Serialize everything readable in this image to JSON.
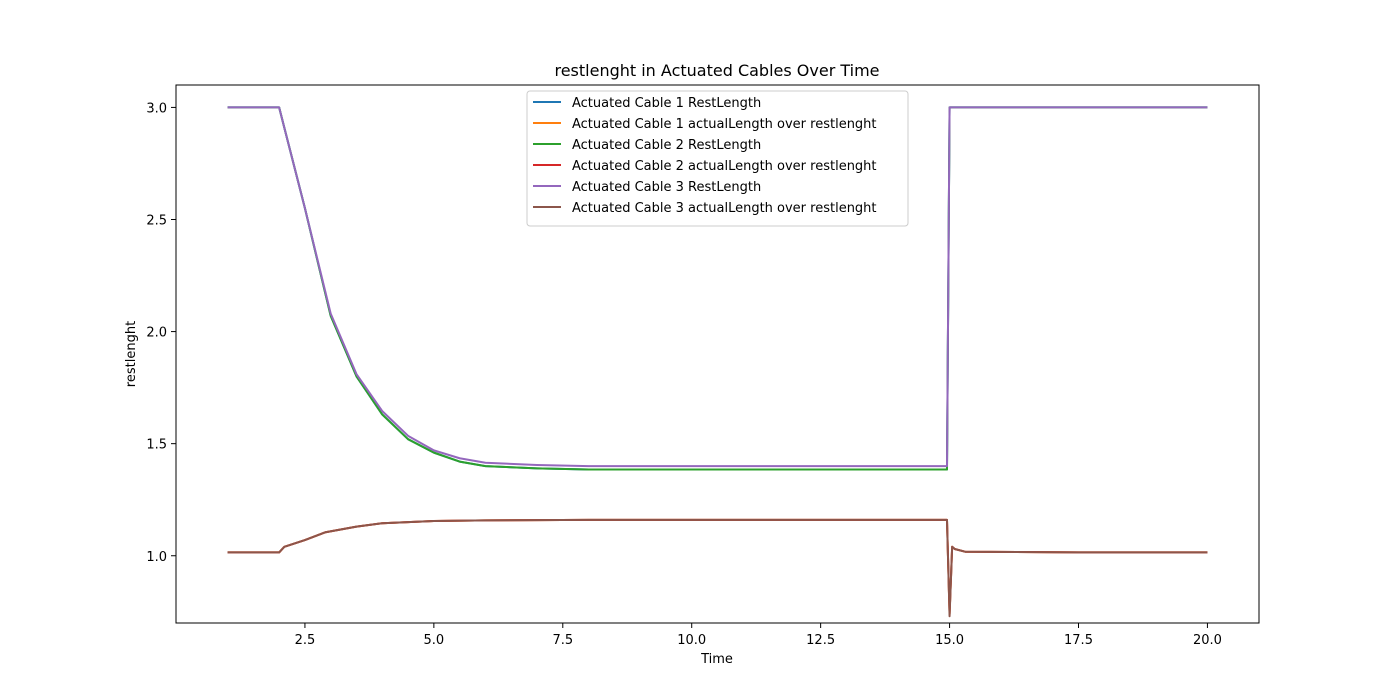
{
  "chart_data": {
    "type": "line",
    "title": "restlenght in Actuated Cables Over Time",
    "xlabel": "Time",
    "ylabel": "restlenght",
    "xlim": [
      0.0,
      21.0
    ],
    "ylim": [
      0.7,
      3.1
    ],
    "xticks": [
      2.5,
      5.0,
      7.5,
      10.0,
      12.5,
      15.0,
      17.5,
      20.0
    ],
    "xtick_labels": [
      "2.5",
      "5.0",
      "7.5",
      "10.0",
      "12.5",
      "15.0",
      "17.5",
      "20.0"
    ],
    "yticks": [
      1.0,
      1.5,
      2.0,
      2.5,
      3.0
    ],
    "ytick_labels": [
      "1.0",
      "1.5",
      "2.0",
      "2.5",
      "3.0"
    ],
    "grid": false,
    "legend_position": "upper-center",
    "series": [
      {
        "name": "Actuated Cable 1 RestLength",
        "color": "#1f77b4",
        "x": [
          1.0,
          2.0,
          2.5,
          3.0,
          3.5,
          4.0,
          4.5,
          5.0,
          5.5,
          6.0,
          7.0,
          8.0,
          10.0,
          12.5,
          14.95,
          15.0,
          15.05,
          17.5,
          20.0
        ],
        "y": [
          3.0,
          3.0,
          2.55,
          2.07,
          1.8,
          1.63,
          1.52,
          1.46,
          1.42,
          1.4,
          1.39,
          1.385,
          1.385,
          1.385,
          1.385,
          3.0,
          3.0,
          3.0,
          3.0
        ]
      },
      {
        "name": "Actuated Cable 1 actualLength over restlenght",
        "color": "#ff7f0e",
        "x": [
          1.0,
          2.0,
          2.1,
          2.5,
          2.9,
          3.5,
          4.0,
          5.0,
          6.0,
          8.0,
          10.0,
          12.5,
          14.95,
          15.0,
          15.05,
          15.1,
          15.3,
          17.5,
          20.0
        ],
        "y": [
          1.015,
          1.015,
          1.04,
          1.07,
          1.105,
          1.13,
          1.145,
          1.155,
          1.158,
          1.16,
          1.16,
          1.16,
          1.16,
          0.74,
          1.04,
          1.03,
          1.018,
          1.015,
          1.015
        ]
      },
      {
        "name": "Actuated Cable 2 RestLength",
        "color": "#2ca02c",
        "x": [
          1.0,
          2.0,
          2.5,
          3.0,
          3.5,
          4.0,
          4.5,
          5.0,
          5.5,
          6.0,
          7.0,
          8.0,
          10.0,
          12.5,
          14.95,
          15.0,
          15.05,
          17.5,
          20.0
        ],
        "y": [
          3.0,
          3.0,
          2.55,
          2.07,
          1.8,
          1.63,
          1.52,
          1.46,
          1.42,
          1.4,
          1.39,
          1.385,
          1.385,
          1.385,
          1.385,
          3.0,
          3.0,
          3.0,
          3.0
        ]
      },
      {
        "name": "Actuated Cable 2 actualLength over restlenght",
        "color": "#d62728",
        "x": [
          1.0,
          2.0,
          2.1,
          2.5,
          2.9,
          3.5,
          4.0,
          5.0,
          6.0,
          8.0,
          10.0,
          12.5,
          14.95,
          15.0,
          15.05,
          15.1,
          15.3,
          17.5,
          20.0
        ],
        "y": [
          1.015,
          1.015,
          1.04,
          1.07,
          1.105,
          1.13,
          1.145,
          1.155,
          1.158,
          1.16,
          1.16,
          1.16,
          1.16,
          0.74,
          1.04,
          1.03,
          1.018,
          1.015,
          1.015
        ]
      },
      {
        "name": "Actuated Cable 3 RestLength",
        "color": "#9467bd",
        "x": [
          1.0,
          2.0,
          2.5,
          3.0,
          3.5,
          4.0,
          4.5,
          5.0,
          5.5,
          6.0,
          7.0,
          8.0,
          10.0,
          12.5,
          14.95,
          15.0,
          15.05,
          17.5,
          20.0
        ],
        "y": [
          3.0,
          3.0,
          2.55,
          2.08,
          1.81,
          1.645,
          1.535,
          1.47,
          1.435,
          1.415,
          1.405,
          1.4,
          1.4,
          1.4,
          1.4,
          3.0,
          3.0,
          3.0,
          3.0
        ]
      },
      {
        "name": "Actuated Cable 3 actualLength over restlenght",
        "color": "#8c564b",
        "x": [
          1.0,
          2.0,
          2.1,
          2.5,
          2.9,
          3.5,
          4.0,
          5.0,
          6.0,
          8.0,
          10.0,
          12.5,
          14.95,
          15.0,
          15.05,
          15.1,
          15.3,
          17.5,
          20.0
        ],
        "y": [
          1.015,
          1.015,
          1.04,
          1.07,
          1.105,
          1.13,
          1.145,
          1.155,
          1.158,
          1.16,
          1.16,
          1.16,
          1.16,
          0.73,
          1.04,
          1.03,
          1.018,
          1.015,
          1.015
        ]
      }
    ]
  }
}
